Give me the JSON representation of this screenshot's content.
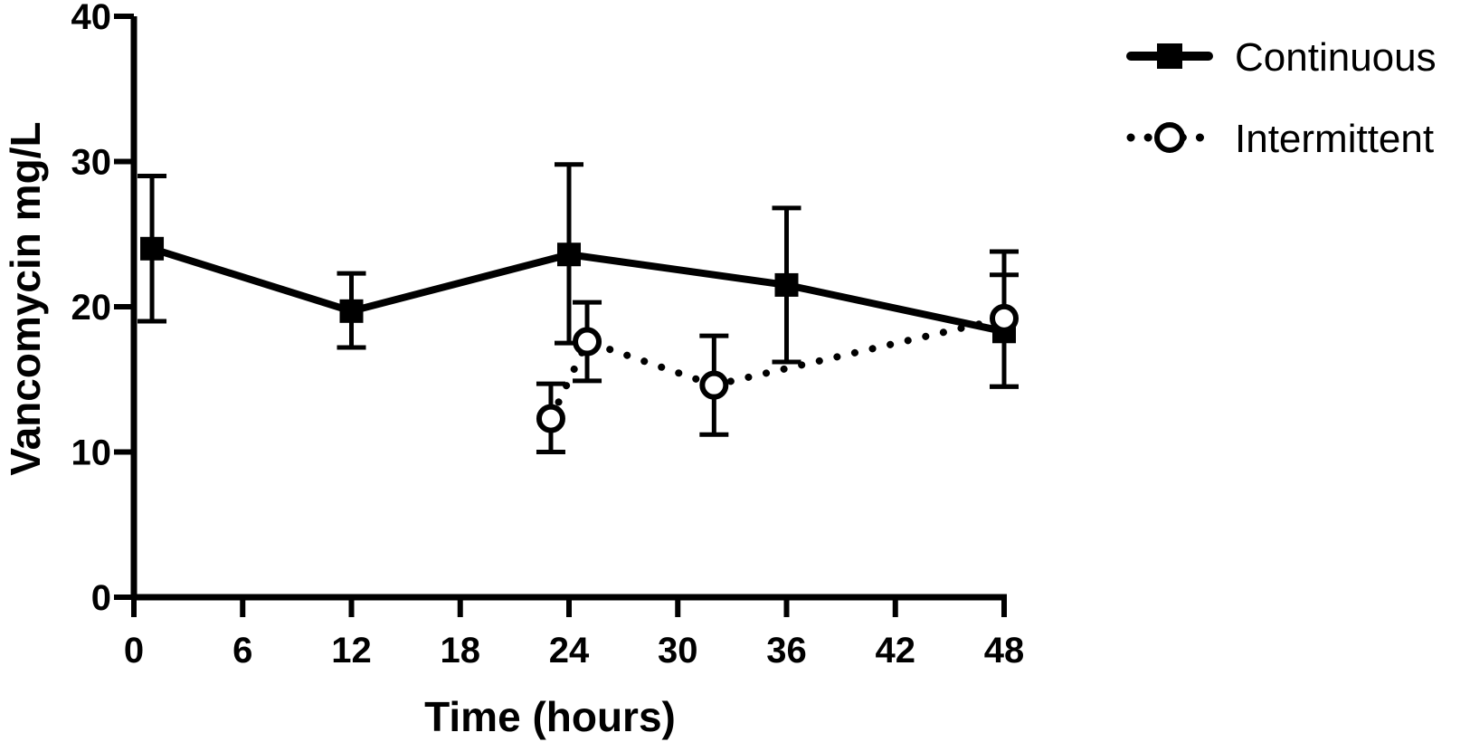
{
  "chart_data": {
    "type": "line",
    "xlabel": "Time (hours)",
    "ylabel": "Vancomycin mg/L",
    "xlim": [
      0,
      48
    ],
    "ylim": [
      0,
      40
    ],
    "x_ticks": [
      0,
      6,
      12,
      18,
      24,
      30,
      36,
      42,
      48
    ],
    "y_ticks": [
      0,
      10,
      20,
      30,
      40
    ],
    "x_tick_labels": [
      "0",
      "6",
      "12",
      "18",
      "24",
      "30",
      "36",
      "42",
      "48"
    ],
    "y_tick_labels": [
      "0",
      "10",
      "20",
      "30",
      "40"
    ],
    "grid": false,
    "legend_position": "top-right",
    "series": [
      {
        "name": "Continuous",
        "line_style": "solid",
        "marker": "filled-square",
        "color": "#000000",
        "points": [
          {
            "x": 1,
            "y": 24.0,
            "upper": 29.0,
            "lower": 19.0
          },
          {
            "x": 12,
            "y": 19.7,
            "upper": 22.3,
            "lower": 17.2
          },
          {
            "x": 24,
            "y": 23.6,
            "upper": 29.8,
            "lower": 17.5
          },
          {
            "x": 36,
            "y": 21.5,
            "upper": 26.8,
            "lower": 16.2
          },
          {
            "x": 48,
            "y": 18.3,
            "upper": 22.2,
            "lower": 14.5
          }
        ]
      },
      {
        "name": "Intermittent",
        "line_style": "dotted",
        "marker": "open-circle",
        "color": "#000000",
        "points": [
          {
            "x": 23,
            "y": 12.3,
            "upper": 14.7,
            "lower": 10.0
          },
          {
            "x": 25,
            "y": 17.6,
            "upper": 20.3,
            "lower": 14.9
          },
          {
            "x": 32,
            "y": 14.6,
            "upper": 18.0,
            "lower": 11.2
          },
          {
            "x": 48,
            "y": 19.2,
            "upper": 23.8,
            "lower": 14.5
          }
        ]
      }
    ]
  }
}
